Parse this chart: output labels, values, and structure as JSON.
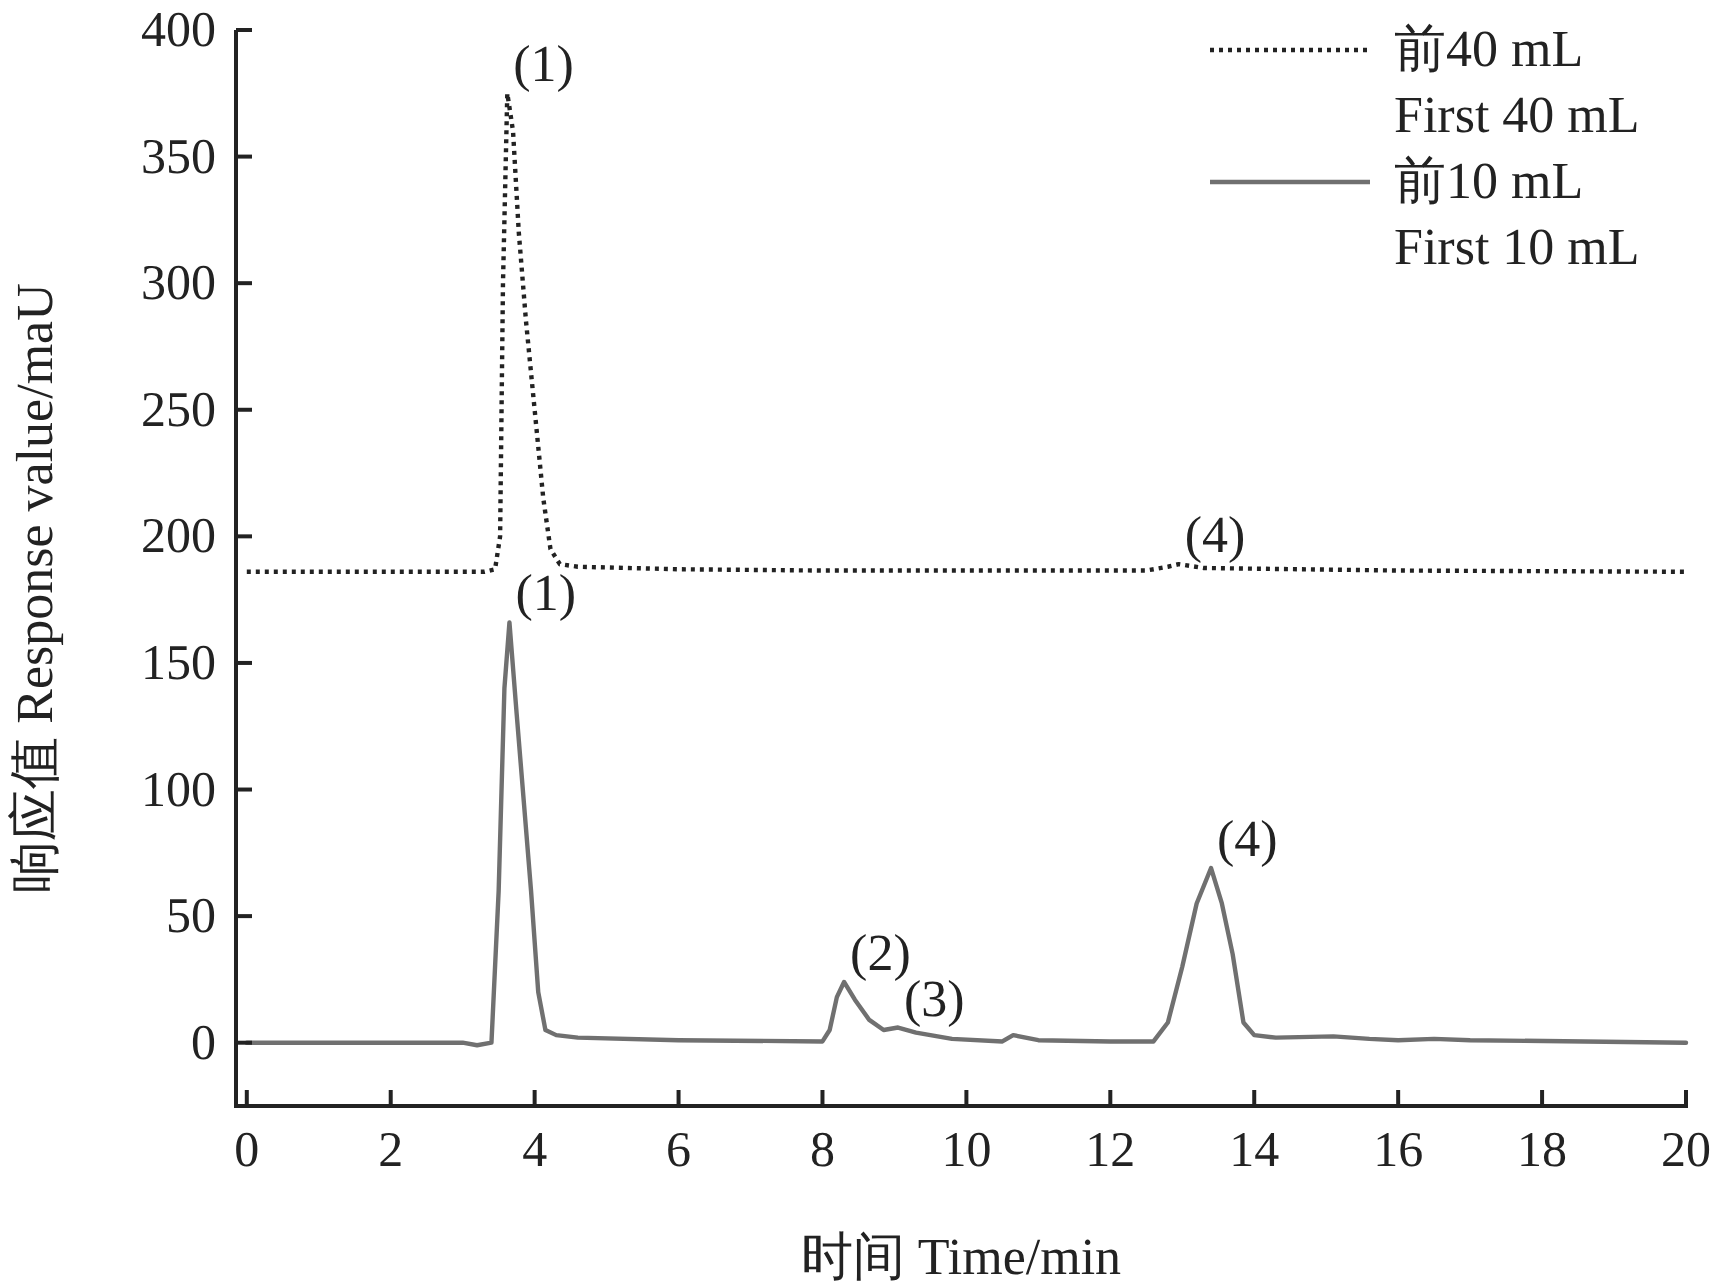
{
  "chart_data": {
    "type": "line",
    "xlabel": "时间 Time/min",
    "ylabel": "响应值 Response value/maU",
    "xlim": [
      -0.15,
      20
    ],
    "xticks": [
      0,
      2,
      4,
      6,
      8,
      10,
      12,
      14,
      16,
      18,
      20
    ],
    "ylim": [
      -25,
      400
    ],
    "yticks": [
      0,
      50,
      100,
      150,
      200,
      250,
      300,
      350,
      400
    ],
    "grid": false,
    "legend": "top right",
    "marker": "none",
    "series": [
      {
        "name": "前40 mL\nFirst 40 mL",
        "color": "#222222",
        "line_style": "dotted",
        "x": [
          0,
          3.3,
          3.45,
          3.52,
          3.56,
          3.62,
          3.7,
          3.78,
          3.88,
          4.0,
          4.12,
          4.22,
          4.35,
          4.6,
          6,
          8,
          10,
          12.5,
          12.8,
          12.95,
          13.3,
          16,
          20
        ],
        "values": [
          186,
          186,
          187,
          200,
          300,
          375,
          360,
          320,
          285,
          250,
          215,
          195,
          189,
          188,
          187,
          186.5,
          186.5,
          186.5,
          188,
          189,
          187.5,
          186.5,
          186
        ]
      },
      {
        "name": "前10 mL\nFirst 10 mL",
        "color": "#707070",
        "line_style": "solid",
        "x": [
          0,
          3.0,
          3.2,
          3.4,
          3.5,
          3.58,
          3.65,
          3.75,
          3.85,
          3.95,
          4.05,
          4.15,
          4.3,
          4.6,
          6,
          8,
          8.1,
          8.2,
          8.3,
          8.45,
          8.65,
          8.85,
          9.05,
          9.3,
          9.8,
          10.5,
          10.65,
          11,
          12,
          12.6,
          12.8,
          13.0,
          13.2,
          13.4,
          13.55,
          13.7,
          13.85,
          14.0,
          14.3,
          15.1,
          15.6,
          16,
          16.5,
          17,
          20
        ],
        "values": [
          0,
          0,
          -1,
          0,
          60,
          140,
          166,
          130,
          95,
          60,
          20,
          5,
          3,
          2,
          1,
          0.5,
          5,
          18,
          24,
          17,
          9,
          5,
          6,
          4,
          1.5,
          0.5,
          3,
          1,
          0.5,
          0.5,
          8,
          30,
          55,
          69,
          55,
          35,
          8,
          3,
          2,
          2.5,
          1.5,
          1,
          1.5,
          1,
          0
        ]
      }
    ],
    "annotations": [
      {
        "text": "(1)",
        "x": 3.62,
        "y": 375
      },
      {
        "text": "(1)",
        "x": 3.65,
        "y": 166
      },
      {
        "text": "(2)",
        "x": 8.3,
        "y": 24
      },
      {
        "text": "(3)",
        "x": 9.05,
        "y": 6
      },
      {
        "text": "(4)",
        "x": 12.95,
        "y": 189
      },
      {
        "text": "(4)",
        "x": 13.4,
        "y": 69
      }
    ]
  }
}
